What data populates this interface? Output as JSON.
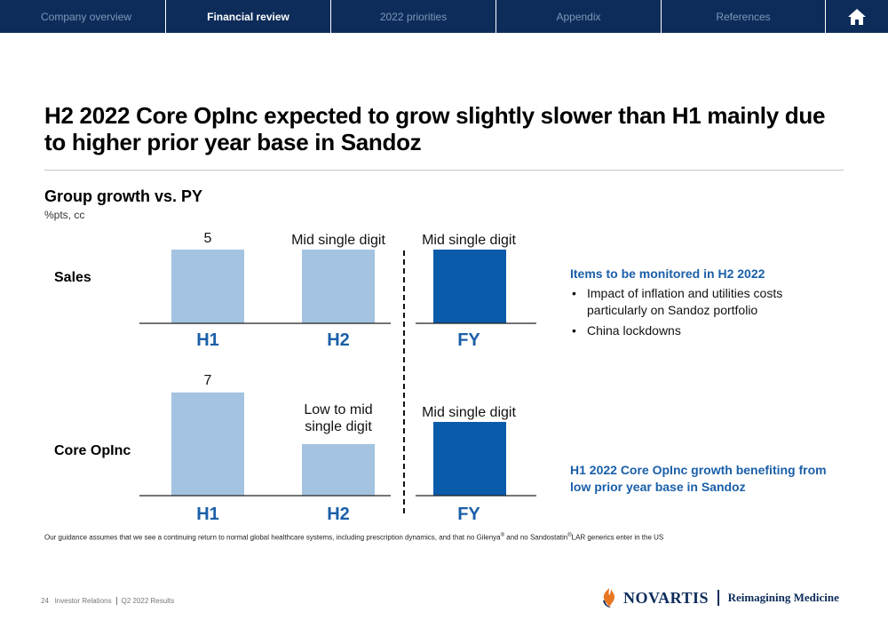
{
  "nav": {
    "tabs": [
      {
        "label": "Company overview"
      },
      {
        "label": "Financial review"
      },
      {
        "label": "2022 priorities"
      },
      {
        "label": "Appendix"
      },
      {
        "label": "References"
      }
    ],
    "active_index": 1,
    "home_icon": "home-icon"
  },
  "title": "H2 2022 Core OpInc expected to grow slightly slower than H1 mainly due to higher prior year base in Sandoz",
  "section": {
    "title": "Group growth vs. PY",
    "subtitle": "%pts, cc"
  },
  "chart_data": [
    {
      "type": "bar",
      "title": "Sales",
      "categories": [
        "H1",
        "H2",
        "FY"
      ],
      "values": [
        5,
        5,
        5
      ],
      "value_labels": [
        "5",
        "Mid single digit",
        "Mid single digit"
      ],
      "colors": [
        "#a4c3e1",
        "#a4c3e1",
        "#0a5ba9"
      ]
    },
    {
      "type": "bar",
      "title": "Core OpInc",
      "categories": [
        "H1",
        "H2",
        "FY"
      ],
      "values": [
        7,
        3.5,
        5
      ],
      "value_labels": [
        "7",
        "Low to mid single digit",
        "Mid single digit"
      ],
      "colors": [
        "#a4c3e1",
        "#a4c3e1",
        "#0a5ba9"
      ]
    }
  ],
  "labels": {
    "sales_row": "Sales",
    "opinc_row": "Core OpInc",
    "sales_values": [
      "5",
      "Mid single digit",
      "Mid single digit"
    ],
    "opinc_h1": "7",
    "opinc_h2_line1": "Low to mid",
    "opinc_h2_line2": "single digit",
    "opinc_fy": "Mid single digit",
    "axis": [
      "H1",
      "H2",
      "FY"
    ]
  },
  "panel": {
    "title": "Items to be monitored in H2 2022",
    "bullets": [
      "Impact of inflation and utilities costs particularly on Sandoz portfolio",
      "China lockdowns"
    ],
    "bullet_symbol": "•",
    "note": "H1 2022 Core OpInc growth benefiting from low prior year base in Sandoz"
  },
  "footnote": {
    "part1": "Our guidance assumes that we see a continuing return to normal global healthcare systems, including prescription dynamics, and that no Gilenya",
    "reg": "®",
    "part2": " and no Sandostatin",
    "reg2": "®",
    "part3": "LAR generics enter in the US"
  },
  "footer": {
    "page": "24",
    "section": "Investor Relations",
    "doc": "Q2 2022 Results"
  },
  "brand": {
    "name": "NOVARTIS",
    "tagline": "Reimagining Medicine",
    "colors": {
      "navy": "#0d2c5a",
      "orange": "#e87722",
      "blue": "#0a5ba9",
      "light_blue": "#a4c3e1",
      "accent": "#1a5fa8"
    }
  }
}
